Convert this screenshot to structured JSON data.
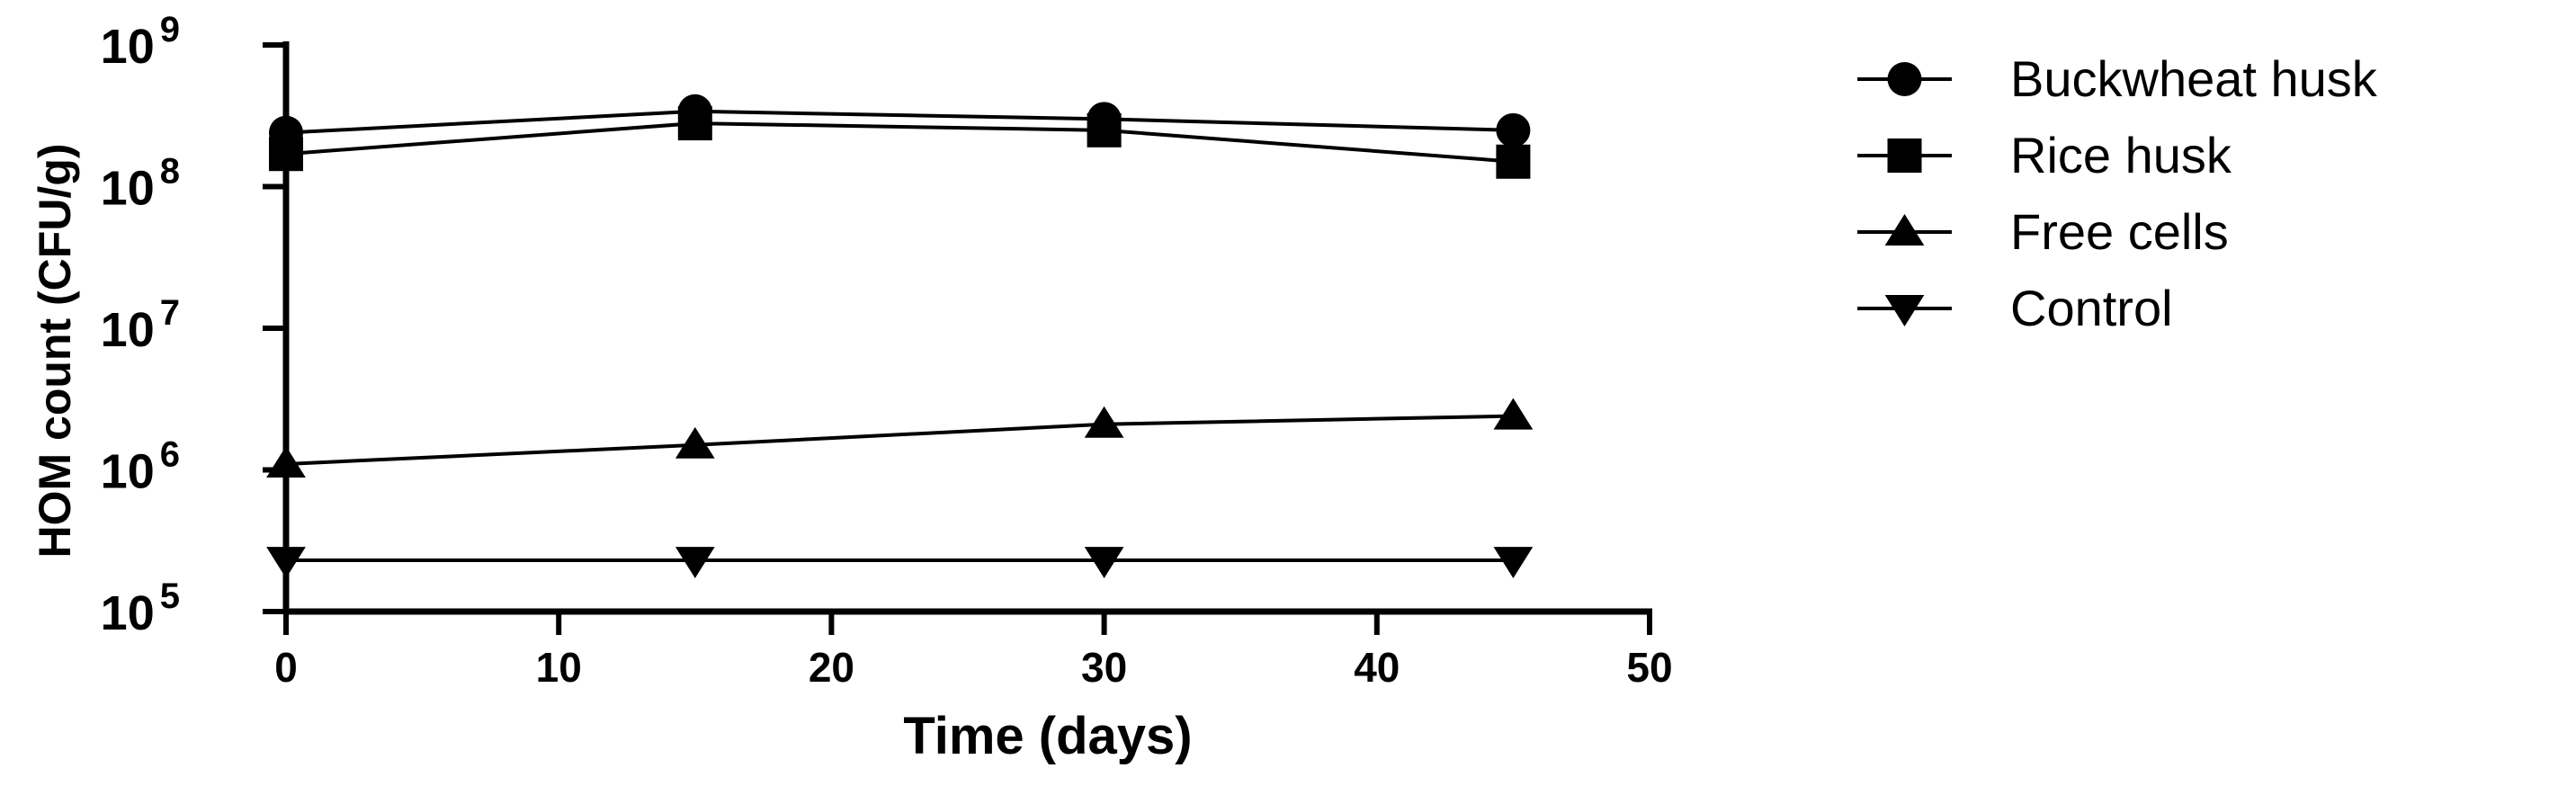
{
  "chart_data": {
    "type": "line",
    "xlabel": "Time (days)",
    "ylabel": "HOM count (CFU/g)",
    "xlim": [
      0,
      50
    ],
    "ylim": [
      100000,
      1000000000
    ],
    "yscale": "log",
    "x_ticks": [
      "0",
      "10",
      "20",
      "30",
      "40",
      "50"
    ],
    "y_ticks": [
      {
        "base": "10",
        "exp": "9"
      },
      {
        "base": "10",
        "exp": "8"
      },
      {
        "base": "10",
        "exp": "7"
      },
      {
        "base": "10",
        "exp": "6"
      },
      {
        "base": "10",
        "exp": "5"
      }
    ],
    "grid": false,
    "legend_position": "right",
    "x": [
      0,
      15,
      30,
      45
    ],
    "series": [
      {
        "name": "Buckwheat husk",
        "marker": "circle",
        "values": [
          240000000,
          340000000,
          300000000,
          250000000
        ]
      },
      {
        "name": "Rice husk",
        "marker": "square",
        "values": [
          170000000,
          280000000,
          250000000,
          150000000
        ]
      },
      {
        "name": "Free cells",
        "marker": "triangle-up",
        "values": [
          1100000,
          1500000,
          2100000,
          2400000
        ]
      },
      {
        "name": "Control",
        "marker": "triangle-down",
        "values": [
          230000,
          230000,
          230000,
          230000
        ]
      }
    ],
    "color": "#000000"
  }
}
